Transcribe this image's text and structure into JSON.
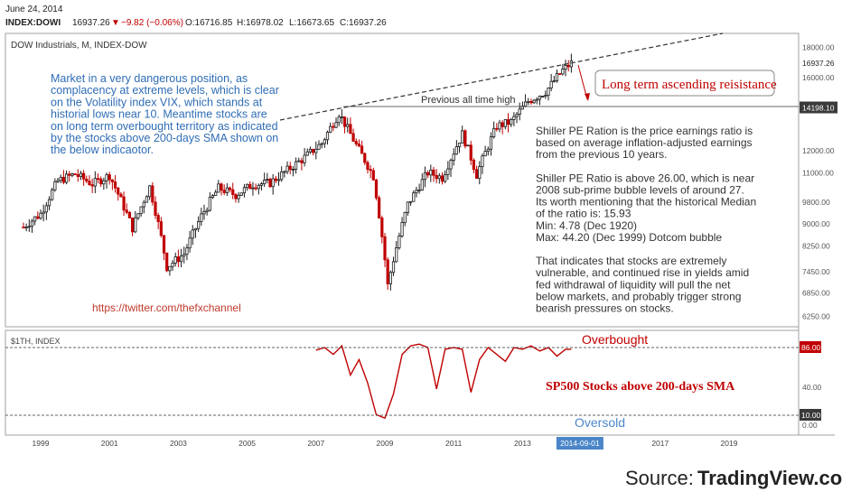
{
  "header": {
    "date": "June 24, 2014",
    "symbol": "INDEX:DOWI",
    "last": "16937.26",
    "change": "−9.82 (−0.06%)",
    "open": "O:16716.85",
    "high": "H:16978.02",
    "low": "L:16673.65",
    "close": "C:16937.26"
  },
  "colors": {
    "up": "#1a1a1a",
    "down": "#c00000",
    "blue_text": "#2f6db5",
    "red_text": "#c00000",
    "label_blue": "#4a86c8"
  },
  "chart_data": [
    {
      "type": "candlestick",
      "title": "DOW Industrials, M, INDEX-DOW",
      "ylim": [
        6000,
        18500
      ],
      "y_ticks": [
        "18000.00",
        "16000.00",
        "14198.10",
        "12000.00",
        "11000.00",
        "9800.00",
        "9000.00",
        "8250.00",
        "7450.00",
        "6850.00",
        "6250.00"
      ],
      "last_label": "16937.26",
      "highlight_label": "14198.10",
      "x_ticks": [
        "1999",
        "2001",
        "2003",
        "2005",
        "2007",
        "2009",
        "2011",
        "2013",
        "2014-09-01",
        "2017",
        "2019"
      ],
      "series": [
        {
          "points": [
            [
              "1998-07",
              8883
            ],
            [
              "1999-01",
              9359
            ],
            [
              "1999-07",
              10655
            ],
            [
              "2000-01",
              10940
            ],
            [
              "2000-07",
              10522
            ],
            [
              "2001-01",
              10887
            ],
            [
              "2001-09",
              8847
            ],
            [
              "2002-03",
              10403
            ],
            [
              "2002-09",
              7592
            ],
            [
              "2003-03",
              7992
            ],
            [
              "2003-09",
              9275
            ],
            [
              "2004-03",
              10357
            ],
            [
              "2004-09",
              10080
            ],
            [
              "2005-03",
              10503
            ],
            [
              "2005-09",
              10568
            ],
            [
              "2006-03",
              11109
            ],
            [
              "2006-09",
              11679
            ],
            [
              "2007-03",
              12354
            ],
            [
              "2007-09",
              13895
            ],
            [
              "2008-03",
              12262
            ],
            [
              "2008-09",
              10850
            ],
            [
              "2009-02",
              7062
            ],
            [
              "2009-09",
              9712
            ],
            [
              "2010-04",
              11008
            ],
            [
              "2010-09",
              10788
            ],
            [
              "2011-04",
              12810
            ],
            [
              "2011-09",
              10913
            ],
            [
              "2012-04",
              13213
            ],
            [
              "2012-09",
              13437
            ],
            [
              "2013-03",
              14578
            ],
            [
              "2013-09",
              15129
            ],
            [
              "2014-03",
              16457
            ],
            [
              "2014-06",
              16937
            ]
          ]
        }
      ],
      "annotations": {
        "resistance_label": "Long term ascending reisistance",
        "prev_high_label": "Previous all time high",
        "commentary_left": [
          "Market in a very dangerous position, as",
          "complacency at extreme levels, which is clear",
          "on the Volatility index VIX, which stands at",
          "historial lows near 10. Meantime stocks are",
          "on long term overbought territory as indicated",
          "by the stocks above 200-days SMA shown on",
          "the below indicaotor."
        ],
        "twitter": "https://twitter.com/thefxchannel",
        "commentary_right": [
          "Shiller PE Ration is the price earnings ratio is",
          "based on average inflation-adjusted earnings",
          "from the previous 10 years.",
          "",
          "Shiller PE Ratio  is above 26.00, which is near",
          "2008 sub-prime bubble levels of around 27.",
          "Its worth mentioning that the historical Median",
          "of the ratio is: 15.93",
          "Min: 4.78 (Dec 1920)",
          "Max: 44.20 (Dec 1999) Dotcom bubble",
          "",
          "That indicates that stocks are extremely",
          "vulnerable, and continued rise in yields amid",
          "fed  withdrawal of liquidity will pull the net",
          "below markets, and probably trigger strong",
          "bearish pressures on stocks."
        ]
      }
    },
    {
      "type": "line",
      "title": "$1TH, INDEX",
      "ylim": [
        0,
        100
      ],
      "y_ticks": [
        "86.00",
        "40.00",
        "10.00",
        "0.00"
      ],
      "overbought_level": 86,
      "oversold_level": 10,
      "overbought_label": "Overbought",
      "oversold_label": "Oversold",
      "series_label": "SP500 Stocks above 200-days SMA",
      "series": [
        {
          "x": [
            "2007-01",
            "2007-04",
            "2007-07",
            "2007-10",
            "2008-01",
            "2008-04",
            "2008-07",
            "2008-10",
            "2009-01",
            "2009-04",
            "2009-07",
            "2009-10",
            "2010-01",
            "2010-04",
            "2010-07",
            "2010-10",
            "2011-01",
            "2011-04",
            "2011-07",
            "2011-10",
            "2012-01",
            "2012-04",
            "2012-07",
            "2012-10",
            "2013-01",
            "2013-04",
            "2013-07",
            "2013-10",
            "2014-01",
            "2014-04",
            "2014-06"
          ],
          "y": [
            83,
            86,
            78,
            88,
            54,
            72,
            45,
            8,
            4,
            32,
            78,
            88,
            90,
            86,
            38,
            84,
            86,
            84,
            34,
            72,
            86,
            78,
            70,
            86,
            84,
            88,
            82,
            86,
            76,
            84,
            84
          ]
        }
      ]
    }
  ],
  "footer": {
    "source_prefix": "Source: ",
    "source_name": "TradingView.com"
  }
}
